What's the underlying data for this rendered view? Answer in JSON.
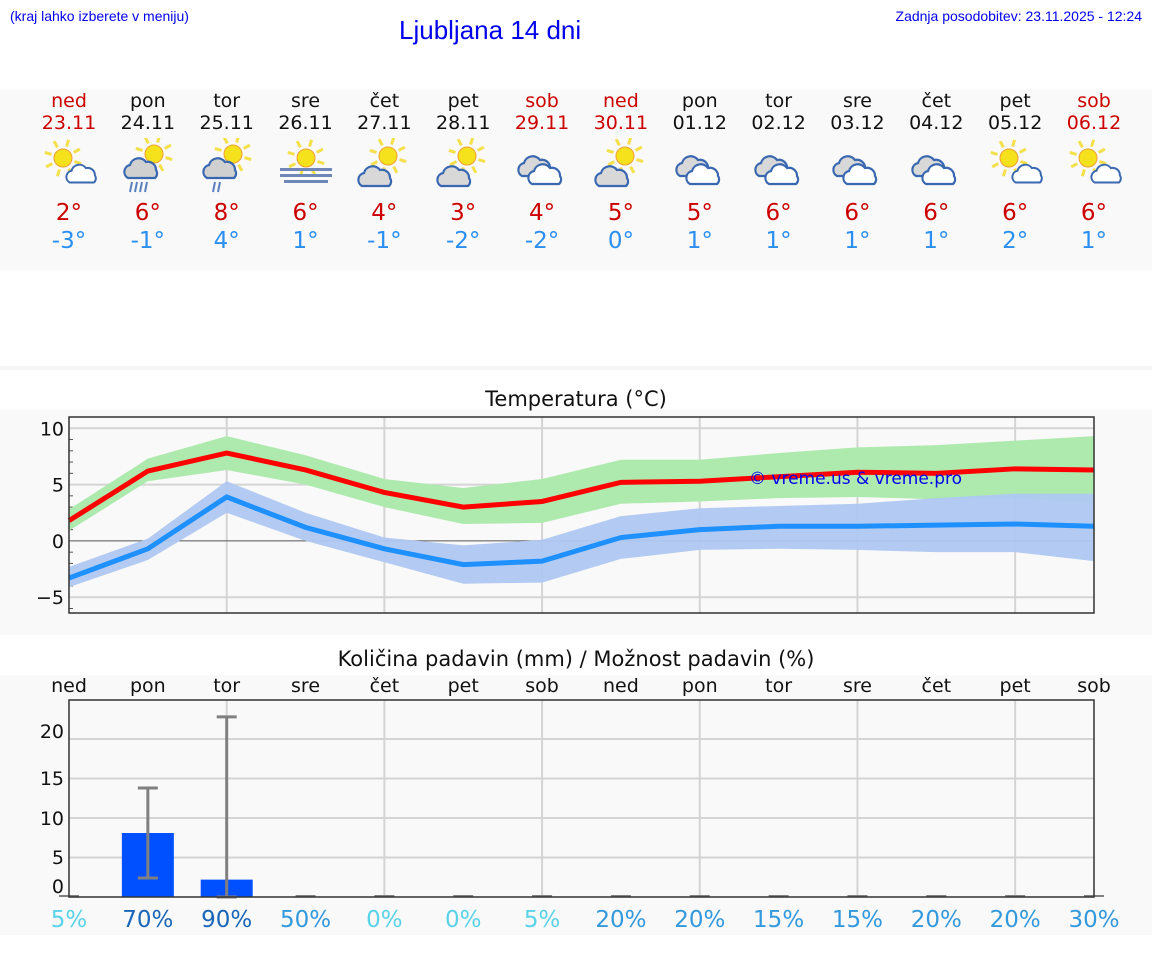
{
  "header": {
    "hint": "(kraj lahko izberete v meniju)",
    "title": "Ljubljana 14 dni",
    "updated": "Zadnja posodobitev: 23.11.2025 - 12:24"
  },
  "days": [
    {
      "name": "ned",
      "date": "23.11",
      "weekend": true,
      "icon": "sun-small-cloud",
      "max": "2°",
      "min": "-3°"
    },
    {
      "name": "pon",
      "date": "24.11",
      "weekend": false,
      "icon": "sun-cloud-rain",
      "max": "6°",
      "min": "-1°"
    },
    {
      "name": "tor",
      "date": "25.11",
      "weekend": false,
      "icon": "sun-cloud-light-rain",
      "max": "8°",
      "min": "4°"
    },
    {
      "name": "sre",
      "date": "26.11",
      "weekend": false,
      "icon": "sun-fog",
      "max": "6°",
      "min": "1°"
    },
    {
      "name": "čet",
      "date": "27.11",
      "weekend": false,
      "icon": "sun-cloud",
      "max": "4°",
      "min": "-1°"
    },
    {
      "name": "pet",
      "date": "28.11",
      "weekend": false,
      "icon": "sun-cloud",
      "max": "3°",
      "min": "-2°"
    },
    {
      "name": "sob",
      "date": "29.11",
      "weekend": true,
      "icon": "cloudy",
      "max": "4°",
      "min": "-2°"
    },
    {
      "name": "ned",
      "date": "30.11",
      "weekend": true,
      "icon": "sun-cloud",
      "max": "5°",
      "min": "0°"
    },
    {
      "name": "pon",
      "date": "01.12",
      "weekend": false,
      "icon": "cloudy",
      "max": "5°",
      "min": "1°"
    },
    {
      "name": "tor",
      "date": "02.12",
      "weekend": false,
      "icon": "cloudy",
      "max": "6°",
      "min": "1°"
    },
    {
      "name": "sre",
      "date": "03.12",
      "weekend": false,
      "icon": "cloudy",
      "max": "6°",
      "min": "1°"
    },
    {
      "name": "čet",
      "date": "04.12",
      "weekend": false,
      "icon": "cloudy",
      "max": "6°",
      "min": "1°"
    },
    {
      "name": "pet",
      "date": "05.12",
      "weekend": false,
      "icon": "sun-small-cloud",
      "max": "6°",
      "min": "2°"
    },
    {
      "name": "sob",
      "date": "06.12",
      "weekend": true,
      "icon": "sun-small-cloud",
      "max": "6°",
      "min": "1°"
    }
  ],
  "colors": {
    "max": "#cc0000",
    "min": "#2a8ff0",
    "max_line": "#ff0000",
    "max_band": "#aeeaae",
    "min_line": "#1e90ff",
    "min_band": "#afc8f2",
    "bar": "#0050ff",
    "errbar": "#808080",
    "watermark": "#0000ee"
  },
  "chart_data": [
    {
      "type": "line",
      "title": "Temperatura (°C)",
      "ylim": [
        -6.4,
        11
      ],
      "yticks": [
        10,
        5,
        0,
        -5
      ],
      "yticklabels": [
        "10",
        "5",
        "0",
        "−5"
      ],
      "grid": true,
      "watermark": "© vreme.us & vreme.pro",
      "series": [
        {
          "key": "max",
          "values": [
            1.8,
            6.2,
            7.8,
            6.3,
            4.3,
            3.0,
            3.5,
            5.2,
            5.3,
            5.7,
            6.1,
            6.0,
            6.4,
            6.3
          ],
          "lower": [
            0.9,
            5.3,
            6.3,
            5.0,
            3.0,
            1.5,
            1.6,
            3.3,
            3.5,
            3.8,
            3.9,
            3.7,
            3.8,
            3.3
          ],
          "upper": [
            2.8,
            7.3,
            9.3,
            7.6,
            5.5,
            4.7,
            5.5,
            7.2,
            7.2,
            7.8,
            8.3,
            8.5,
            8.9,
            9.3
          ]
        },
        {
          "key": "min",
          "values": [
            -3.3,
            -0.7,
            3.9,
            1.2,
            -0.7,
            -2.1,
            -1.8,
            0.3,
            1.0,
            1.3,
            1.3,
            1.4,
            1.5,
            1.3
          ],
          "lower": [
            -4.1,
            -1.7,
            2.5,
            0.0,
            -1.9,
            -3.8,
            -3.7,
            -1.6,
            -0.8,
            -0.7,
            -0.8,
            -1.0,
            -1.0,
            -1.8
          ],
          "upper": [
            -2.3,
            0.2,
            5.3,
            2.5,
            0.3,
            -0.4,
            0.1,
            2.2,
            2.9,
            3.1,
            3.3,
            3.8,
            4.2,
            4.2
          ]
        }
      ]
    },
    {
      "type": "bar",
      "title": "Količina padavin (mm) / Možnost padavin (%)",
      "ylim": [
        0,
        25
      ],
      "yticks": [
        20,
        15,
        10,
        5,
        0
      ],
      "categories": [
        "ned",
        "pon",
        "tor",
        "sre",
        "čet",
        "pet",
        "sob",
        "ned",
        "pon",
        "tor",
        "sre",
        "čet",
        "pet",
        "sob"
      ],
      "values": [
        0,
        8.1,
        2.2,
        0,
        0,
        0,
        0,
        0,
        0,
        0,
        0,
        0,
        0,
        0
      ],
      "err_low": [
        0,
        2.4,
        0,
        0,
        0,
        0,
        0,
        0,
        0,
        0,
        0,
        0,
        0,
        0
      ],
      "err_high": [
        0,
        13.8,
        22.8,
        0,
        0,
        0,
        0,
        0,
        0,
        0,
        0,
        0,
        0,
        0
      ],
      "probability": [
        "5%",
        "70%",
        "90%",
        "50%",
        "0%",
        "0%",
        "5%",
        "20%",
        "20%",
        "15%",
        "15%",
        "20%",
        "20%",
        "30%"
      ],
      "probability_values": [
        5,
        70,
        90,
        50,
        0,
        0,
        5,
        20,
        20,
        15,
        15,
        20,
        20,
        30
      ]
    }
  ]
}
